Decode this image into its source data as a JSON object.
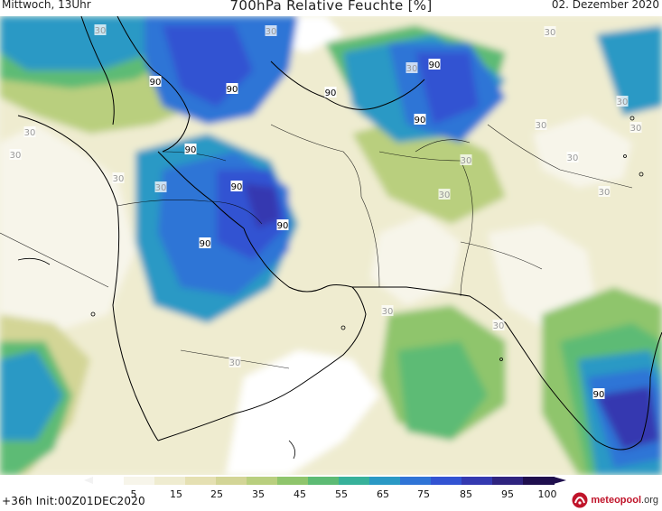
{
  "header": {
    "left": "Mittwoch, 13Uhr",
    "title": "700hPa Relative Feuchte [%]",
    "right": "02. Dezember 2020"
  },
  "footer": {
    "run_info": "+36h Init:00Z01DEC2020",
    "logo_text": "meteopool",
    "logo_suffix": ".org"
  },
  "colorbar": {
    "segments": [
      {
        "color": "#ffffff"
      },
      {
        "color": "#f7f5ea"
      },
      {
        "color": "#efecd0"
      },
      {
        "color": "#e5e0b2"
      },
      {
        "color": "#d3d596"
      },
      {
        "color": "#b9cf7e"
      },
      {
        "color": "#8fc56c"
      },
      {
        "color": "#5dbb74"
      },
      {
        "color": "#37b19a"
      },
      {
        "color": "#2a99c5"
      },
      {
        "color": "#2f74d6"
      },
      {
        "color": "#3253d2"
      },
      {
        "color": "#3439b0"
      },
      {
        "color": "#2f247f"
      },
      {
        "color": "#1f0f4e"
      }
    ],
    "ticks": [
      "5",
      "15",
      "25",
      "35",
      "45",
      "55",
      "65",
      "75",
      "85",
      "95",
      "100"
    ]
  },
  "contour_labels": [
    {
      "text": "90"
    },
    {
      "text": "90"
    },
    {
      "text": "90"
    },
    {
      "text": "90"
    },
    {
      "text": "90"
    },
    {
      "text": "90"
    },
    {
      "text": "90"
    },
    {
      "text": "90"
    },
    {
      "text": "90"
    },
    {
      "text": "90"
    },
    {
      "text": "30"
    },
    {
      "text": "30"
    },
    {
      "text": "30"
    },
    {
      "text": "30"
    },
    {
      "text": "30"
    },
    {
      "text": "30"
    },
    {
      "text": "30"
    },
    {
      "text": "30"
    },
    {
      "text": "30"
    },
    {
      "text": "30"
    },
    {
      "text": "30"
    },
    {
      "text": "30"
    },
    {
      "text": "30"
    },
    {
      "text": "30"
    },
    {
      "text": "30"
    },
    {
      "text": "30"
    },
    {
      "text": "30"
    },
    {
      "text": "30"
    }
  ]
}
